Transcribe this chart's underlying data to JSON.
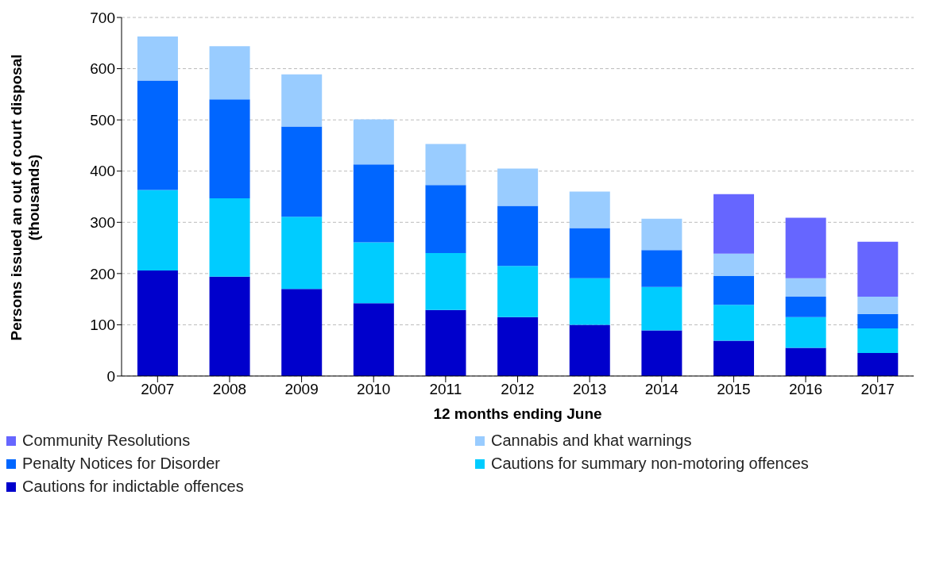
{
  "chart_data": {
    "type": "bar",
    "stacked": true,
    "xlabel": "12 months ending June",
    "ylabel": "Persons issued an out of court disposal (thousands)",
    "categories": [
      "2007",
      "2008",
      "2009",
      "2010",
      "2011",
      "2012",
      "2013",
      "2014",
      "2015",
      "2016",
      "2017"
    ],
    "series": [
      {
        "name": "Cautions for indictable offences",
        "color": "#0000cc",
        "values": [
          206,
          194,
          170,
          142,
          129,
          115,
          100,
          89,
          69,
          55,
          45
        ]
      },
      {
        "name": "Cautions for summary non-motoring offences",
        "color": "#00ccff",
        "values": [
          157,
          153,
          141,
          119,
          111,
          100,
          91,
          85,
          70,
          60,
          48
        ]
      },
      {
        "name": "Penalty Notices for Disorder",
        "color": "#0066ff",
        "values": [
          214,
          193,
          176,
          152,
          133,
          117,
          98,
          72,
          56,
          40,
          28
        ]
      },
      {
        "name": "Cannabis and khat warnings",
        "color": "#99ccff",
        "values": [
          86,
          104,
          102,
          88,
          80,
          73,
          71,
          61,
          44,
          36,
          34
        ]
      },
      {
        "name": "Community Resolutions",
        "color": "#6666ff",
        "values": [
          null,
          null,
          null,
          null,
          null,
          null,
          null,
          null,
          116,
          118,
          107
        ]
      }
    ],
    "ylim": [
      0,
      700
    ],
    "yticks": [
      0,
      100,
      200,
      300,
      400,
      500,
      600,
      700
    ],
    "grid": "y",
    "legend": "bottom"
  }
}
